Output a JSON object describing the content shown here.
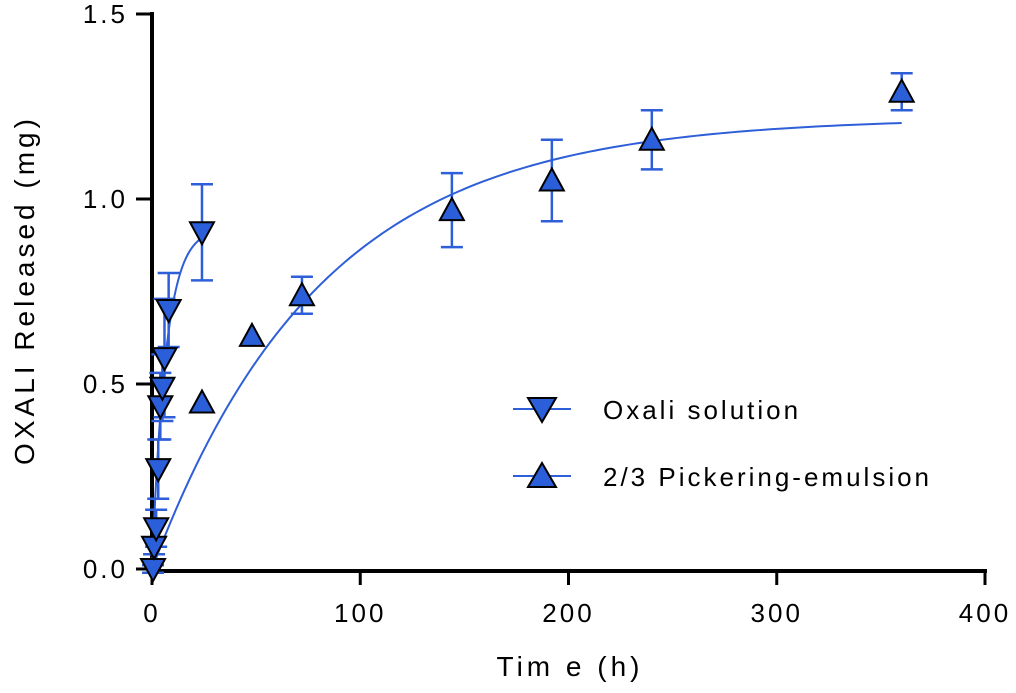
{
  "chart_data": {
    "type": "scatter",
    "title": "",
    "xlabel": "Tim e (h)",
    "ylabel": "OXALI Released (mg)",
    "xlim": [
      0,
      400
    ],
    "ylim": [
      0,
      1.5
    ],
    "xticks": [
      0,
      100,
      200,
      300,
      400
    ],
    "yticks": [
      0.0,
      0.5,
      1.0,
      1.5
    ],
    "xtick_labels": [
      "0",
      "100",
      "200",
      "300",
      "400"
    ],
    "ytick_labels": [
      "0.0",
      "0.5",
      "1.0",
      "1.5"
    ],
    "grid": false,
    "legend_position": "center-right",
    "colors": {
      "marker_fill": "#2b5fd9",
      "line": "#2e5fd8",
      "axis": "#000000"
    },
    "series": [
      {
        "name": "Oxali solution",
        "marker": "triangle-down",
        "x": [
          0.5,
          1,
          2,
          3,
          4,
          5,
          6,
          8,
          24
        ],
        "y": [
          0.0,
          0.06,
          0.11,
          0.27,
          0.44,
          0.49,
          0.57,
          0.7,
          0.91
        ],
        "error": [
          0.01,
          0.02,
          0.05,
          0.08,
          0.09,
          0.09,
          0.16,
          0.1,
          0.13
        ],
        "fit": {
          "model": "one-phase association",
          "plateau": 0.92,
          "k": 0.15
        }
      },
      {
        "name": "2/3 Pickering-emulsion",
        "marker": "triangle-up",
        "x": [
          24,
          48,
          72,
          144,
          192,
          240,
          360
        ],
        "y": [
          0.45,
          0.63,
          0.74,
          0.97,
          1.05,
          1.16,
          1.29
        ],
        "error": [
          0.0,
          0.0,
          0.05,
          0.1,
          0.11,
          0.08,
          0.05
        ],
        "fit": {
          "model": "one-phase association",
          "plateau": 1.22,
          "k": 0.0123,
          "x_range": [
            0,
            360
          ]
        }
      }
    ]
  }
}
